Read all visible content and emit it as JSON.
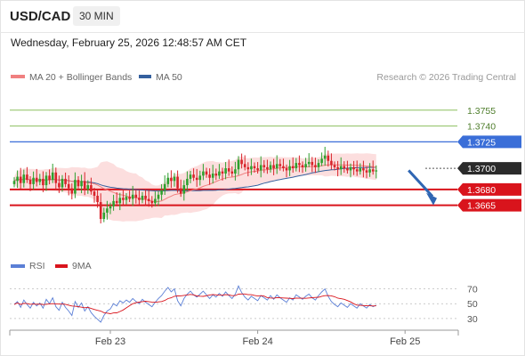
{
  "header": {
    "symbol": "USD/CAD",
    "timeframe": "30 MIN",
    "datetime": "Wednesday, February 25, 2026 12:48:57 AM CET"
  },
  "legend": {
    "ma20": "MA 20 + Bollinger Bands",
    "ma50": "MA 50",
    "source": "Research © 2026 Trading Central",
    "rsi": "RSI",
    "rsi_ma": "9MA"
  },
  "colors": {
    "up": "#2ea02e",
    "down": "#d8232a",
    "ma20": "#f08080",
    "ma50": "#35609e",
    "band": "#fbd3d3",
    "resistance_green": "#8cbf5f",
    "resistance_blue": "#3a6ed8",
    "support_red": "#d9141c",
    "price_tag": "#2b2b2b",
    "rsi": "#5b7fd6",
    "rsi_ma": "#d9141c",
    "arrow": "#2f66b3"
  },
  "chart_data": {
    "type": "candlestick",
    "x_ticks": [
      {
        "label": "Feb 23",
        "index": 30
      },
      {
        "label": "Feb 24",
        "index": 76
      },
      {
        "label": "Feb 25",
        "index": 122
      }
    ],
    "ylim": [
      1.3615,
      1.3775
    ],
    "levels": [
      {
        "value": 1.3755,
        "label": "1.3755",
        "kind": "resistance_green"
      },
      {
        "value": 1.374,
        "label": "1.3740",
        "kind": "resistance_green"
      },
      {
        "value": 1.3725,
        "label": "1.3725",
        "kind": "resistance_blue"
      },
      {
        "value": 1.37,
        "label": "1.3700",
        "kind": "current"
      },
      {
        "value": 1.368,
        "label": "1.3680",
        "kind": "support_red"
      },
      {
        "value": 1.3665,
        "label": "1.3665",
        "kind": "support_red"
      }
    ],
    "forecast_arrow": {
      "from_index": 122,
      "from_value": 1.3698,
      "to_index": 130,
      "to_value": 1.3665
    },
    "close": [
      1.3688,
      1.3692,
      1.3686,
      1.3694,
      1.3689,
      1.3685,
      1.3691,
      1.3687,
      1.369,
      1.3684,
      1.3693,
      1.3689,
      1.3696,
      1.3686,
      1.3682,
      1.369,
      1.3685,
      1.3681,
      1.3676,
      1.3689,
      1.3683,
      1.3688,
      1.368,
      1.3684,
      1.3678,
      1.3674,
      1.3668,
      1.3652,
      1.3658,
      1.3662,
      1.3664,
      1.3669,
      1.3667,
      1.3672,
      1.367,
      1.3673,
      1.3671,
      1.3675,
      1.3672,
      1.367,
      1.3674,
      1.3671,
      1.3669,
      1.3667,
      1.3671,
      1.3675,
      1.3679,
      1.3685,
      1.3691,
      1.3688,
      1.3692,
      1.3681,
      1.3676,
      1.3684,
      1.369,
      1.3694,
      1.3691,
      1.3689,
      1.3693,
      1.3697,
      1.3694,
      1.3691,
      1.3695,
      1.3693,
      1.3697,
      1.3695,
      1.37,
      1.3697,
      1.3695,
      1.3699,
      1.3708,
      1.3704,
      1.3701,
      1.3699,
      1.3702,
      1.37,
      1.3698,
      1.3703,
      1.3701,
      1.3699,
      1.3703,
      1.37,
      1.3704,
      1.3702,
      1.37,
      1.3698,
      1.3702,
      1.37,
      1.3705,
      1.3703,
      1.3701,
      1.3704,
      1.3706,
      1.3703,
      1.3701,
      1.3705,
      1.3709,
      1.3712,
      1.3707,
      1.3703,
      1.3701,
      1.3699,
      1.3702,
      1.37,
      1.3698,
      1.3701,
      1.3699,
      1.3697,
      1.37,
      1.3698,
      1.3696,
      1.3699,
      1.3697,
      1.3698
    ],
    "rsi": {
      "ticks": [
        70,
        50,
        30
      ],
      "ylim": [
        25,
        78
      ],
      "values": [
        49,
        53,
        45,
        55,
        49,
        44,
        52,
        47,
        51,
        44,
        56,
        50,
        58,
        46,
        41,
        52,
        45,
        40,
        34,
        53,
        45,
        51,
        40,
        46,
        38,
        33,
        29,
        25,
        34,
        40,
        43,
        50,
        47,
        54,
        51,
        55,
        52,
        57,
        53,
        50,
        56,
        52,
        49,
        46,
        52,
        57,
        61,
        67,
        72,
        66,
        70,
        54,
        47,
        57,
        63,
        67,
        62,
        59,
        63,
        67,
        62,
        57,
        62,
        59,
        64,
        60,
        66,
        61,
        57,
        63,
        74,
        65,
        59,
        55,
        60,
        57,
        54,
        61,
        58,
        55,
        61,
        56,
        62,
        58,
        55,
        52,
        58,
        55,
        62,
        59,
        56,
        60,
        63,
        58,
        55,
        61,
        66,
        70,
        60,
        53,
        49,
        46,
        51,
        48,
        45,
        50,
        47,
        44,
        50,
        47,
        44,
        49,
        46,
        48
      ]
    }
  }
}
